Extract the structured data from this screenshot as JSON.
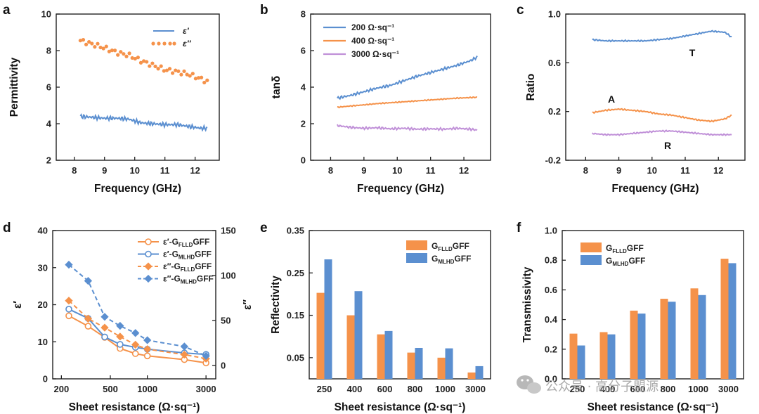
{
  "colors": {
    "blue": "#5b8fd0",
    "orange": "#f5924a",
    "purple": "#c090d8",
    "axis": "#222222"
  },
  "watermark": {
    "text": "公众号 · 高分子盟源",
    "icon": "wechat-icon"
  },
  "chart_data": [
    {
      "id": "a",
      "type": "line",
      "panel_label": "a",
      "xlabel": "Frequency (GHz)",
      "ylabel": "Permittivity",
      "xlim": [
        7.4,
        12.8
      ],
      "ylim": [
        2,
        10
      ],
      "xticks": [
        "8",
        "9",
        "10",
        "11",
        "12"
      ],
      "yticks": [
        "2",
        "4",
        "6",
        "8",
        "10"
      ],
      "legend_position": "top-right",
      "series": [
        {
          "name": "ε′",
          "style": "solid",
          "color": "#5b8fd0",
          "x": [
            8.2,
            8.6,
            9.0,
            9.4,
            9.8,
            10.2,
            10.6,
            11.0,
            11.4,
            11.8,
            12.2,
            12.4
          ],
          "y": [
            4.4,
            4.35,
            4.3,
            4.3,
            4.25,
            4.05,
            4.0,
            3.95,
            3.95,
            3.85,
            3.75,
            3.75
          ]
        },
        {
          "name": "ε″",
          "style": "dotted",
          "color": "#f5924a",
          "x": [
            8.2,
            8.6,
            9.0,
            9.4,
            9.8,
            10.2,
            10.6,
            11.0,
            11.4,
            11.8,
            12.2,
            12.4
          ],
          "y": [
            8.55,
            8.35,
            8.15,
            7.9,
            7.75,
            7.45,
            7.2,
            6.95,
            6.85,
            6.7,
            6.45,
            6.3
          ]
        }
      ]
    },
    {
      "id": "b",
      "type": "line",
      "panel_label": "b",
      "xlabel": "Frequency (GHz)",
      "ylabel": "tanδ",
      "xlim": [
        7.4,
        12.8
      ],
      "ylim": [
        0,
        8
      ],
      "xticks": [
        "8",
        "9",
        "10",
        "11",
        "12"
      ],
      "yticks": [
        "0",
        "2",
        "4",
        "6",
        "8"
      ],
      "legend_position": "top-left",
      "series": [
        {
          "name": "200 Ω·sq⁻¹",
          "color": "#5b8fd0",
          "x": [
            8.2,
            8.6,
            9.0,
            9.4,
            9.8,
            10.2,
            10.6,
            11.0,
            11.4,
            11.8,
            12.2,
            12.4
          ],
          "y": [
            3.4,
            3.55,
            3.75,
            3.95,
            4.1,
            4.35,
            4.6,
            4.8,
            5.0,
            5.2,
            5.45,
            5.65
          ]
        },
        {
          "name": "400 Ω·sq⁻¹",
          "color": "#f5924a",
          "x": [
            8.2,
            8.6,
            9.0,
            9.4,
            9.8,
            10.2,
            10.6,
            11.0,
            11.4,
            11.8,
            12.2,
            12.4
          ],
          "y": [
            2.9,
            2.97,
            3.03,
            3.1,
            3.15,
            3.2,
            3.25,
            3.3,
            3.35,
            3.4,
            3.43,
            3.45
          ]
        },
        {
          "name": "3000 Ω·sq⁻¹",
          "color": "#c090d8",
          "x": [
            8.2,
            8.6,
            9.0,
            9.4,
            9.8,
            10.2,
            10.6,
            11.0,
            11.4,
            11.8,
            12.2,
            12.4
          ],
          "y": [
            1.9,
            1.8,
            1.75,
            1.78,
            1.72,
            1.75,
            1.7,
            1.72,
            1.7,
            1.75,
            1.7,
            1.65
          ]
        }
      ]
    },
    {
      "id": "c",
      "type": "line",
      "panel_label": "c",
      "xlabel": "Frequency (GHz)",
      "ylabel": "Ratio",
      "xlim": [
        7.4,
        12.8
      ],
      "ylim": [
        -0.2,
        1.0
      ],
      "xticks": [
        "8",
        "9",
        "10",
        "11",
        "12"
      ],
      "yticks": [
        "-0.2",
        "0.2",
        "0.6",
        "1.0"
      ],
      "series": [
        {
          "name": "T",
          "color": "#5b8fd0",
          "x": [
            8.2,
            8.6,
            9.0,
            9.4,
            9.8,
            10.2,
            10.6,
            11.0,
            11.4,
            11.8,
            12.2,
            12.4
          ],
          "y": [
            0.79,
            0.78,
            0.78,
            0.78,
            0.78,
            0.79,
            0.8,
            0.82,
            0.84,
            0.86,
            0.85,
            0.81
          ]
        },
        {
          "name": "A",
          "color": "#f5924a",
          "x": [
            8.2,
            8.6,
            9.0,
            9.4,
            9.8,
            10.2,
            10.6,
            11.0,
            11.4,
            11.8,
            12.2,
            12.4
          ],
          "y": [
            0.19,
            0.21,
            0.22,
            0.21,
            0.2,
            0.18,
            0.17,
            0.15,
            0.13,
            0.12,
            0.14,
            0.17
          ]
        },
        {
          "name": "R",
          "color": "#c090d8",
          "x": [
            8.2,
            8.6,
            9.0,
            9.4,
            9.8,
            10.2,
            10.6,
            11.0,
            11.4,
            11.8,
            12.2,
            12.4
          ],
          "y": [
            0.02,
            0.01,
            0.01,
            0.02,
            0.03,
            0.04,
            0.04,
            0.03,
            0.02,
            0.01,
            0.01,
            0.01
          ]
        }
      ]
    },
    {
      "id": "d",
      "type": "line",
      "panel_label": "d",
      "xlabel": "Sheet resistance (Ω·sq⁻¹)",
      "ylabel": "ε′",
      "y2label": "ε″",
      "xscale": "log",
      "xlim": [
        170,
        3600
      ],
      "ylim": [
        0,
        40
      ],
      "y2lim": [
        -15,
        150
      ],
      "xticks": [
        "200",
        "500",
        "1000",
        "3000"
      ],
      "yticks": [
        "0",
        "10",
        "20",
        "30",
        "40"
      ],
      "y2ticks": [
        "0",
        "50",
        "100",
        "150"
      ],
      "legend_position": "top-right",
      "series": [
        {
          "name": "ε′",
          "name_sub": "-G",
          "name_subscript": "FLLD",
          "name_end": "GFF",
          "color": "#f5924a",
          "style": "solid",
          "marker": "circle",
          "axis": "left",
          "x": [
            230,
            330,
            450,
            600,
            800,
            1000,
            2000,
            3000
          ],
          "y": [
            17,
            14.2,
            11.2,
            8.2,
            6.8,
            6.2,
            5.2,
            4.3
          ]
        },
        {
          "name": "ε′",
          "name_sub": "-G",
          "name_subscript": "MLHD",
          "name_end": "GFF",
          "color": "#5b8fd0",
          "style": "solid",
          "marker": "circle",
          "axis": "left",
          "x": [
            230,
            330,
            450,
            600,
            800,
            1000,
            2000,
            3000
          ],
          "y": [
            18.8,
            16.3,
            11.3,
            9.3,
            8.5,
            8.0,
            7.0,
            6.6
          ]
        },
        {
          "name": "ε″",
          "name_sub": "-G",
          "name_subscript": "FLLD",
          "name_end": "GFF",
          "color": "#f5924a",
          "style": "dashed",
          "marker": "diamond",
          "axis": "right",
          "x": [
            230,
            330,
            450,
            600,
            800,
            1000,
            2000,
            3000
          ],
          "y": [
            72,
            52,
            42,
            32,
            23,
            18,
            12,
            7.5
          ]
        },
        {
          "name": "ε″",
          "name_sub": "-G",
          "name_subscript": "MLHD",
          "name_end": "GFF",
          "color": "#5b8fd0",
          "style": "dashed",
          "marker": "diamond",
          "axis": "right",
          "x": [
            230,
            330,
            450,
            600,
            800,
            1000,
            2000,
            3000
          ],
          "y": [
            112,
            94,
            54,
            44,
            36,
            28,
            21,
            10.5
          ]
        }
      ]
    },
    {
      "id": "e",
      "type": "bar",
      "panel_label": "e",
      "xlabel": "Sheet resistance (Ω·sq⁻¹)",
      "ylabel": "Reflectivity",
      "ylim": [
        0,
        0.35
      ],
      "yticks": [
        "0.05",
        "0.15",
        "0.25",
        "0.35"
      ],
      "categories": [
        "250",
        "400",
        "600",
        "800",
        "1000",
        "3000"
      ],
      "legend_position": "top-right",
      "series": [
        {
          "name": "G",
          "name_subscript": "FLLD",
          "name_end": "GFF",
          "color": "#f5924a",
          "values": [
            0.203,
            0.15,
            0.105,
            0.062,
            0.05,
            0.015
          ]
        },
        {
          "name": "G",
          "name_subscript": "MLHD",
          "name_end": "GFF",
          "color": "#5b8fd0",
          "values": [
            0.282,
            0.207,
            0.113,
            0.073,
            0.072,
            0.03
          ]
        }
      ]
    },
    {
      "id": "f",
      "type": "bar",
      "panel_label": "f",
      "xlabel": "Sheet resistance (Ω·sq⁻¹)",
      "ylabel": "Transmissivity",
      "ylim": [
        0,
        1.0
      ],
      "yticks": [
        "0.0",
        "0.2",
        "0.4",
        "0.6",
        "0.8",
        "1.0"
      ],
      "categories": [
        "250",
        "400",
        "600",
        "800",
        "1000",
        "3000"
      ],
      "legend_position": "top-left",
      "series": [
        {
          "name": "G",
          "name_subscript": "FLLD",
          "name_end": "GFF",
          "color": "#f5924a",
          "values": [
            0.305,
            0.315,
            0.46,
            0.54,
            0.61,
            0.81
          ]
        },
        {
          "name": "G",
          "name_subscript": "MLHD",
          "name_end": "GFF",
          "color": "#5b8fd0",
          "values": [
            0.225,
            0.3,
            0.44,
            0.52,
            0.565,
            0.78
          ]
        }
      ]
    }
  ]
}
